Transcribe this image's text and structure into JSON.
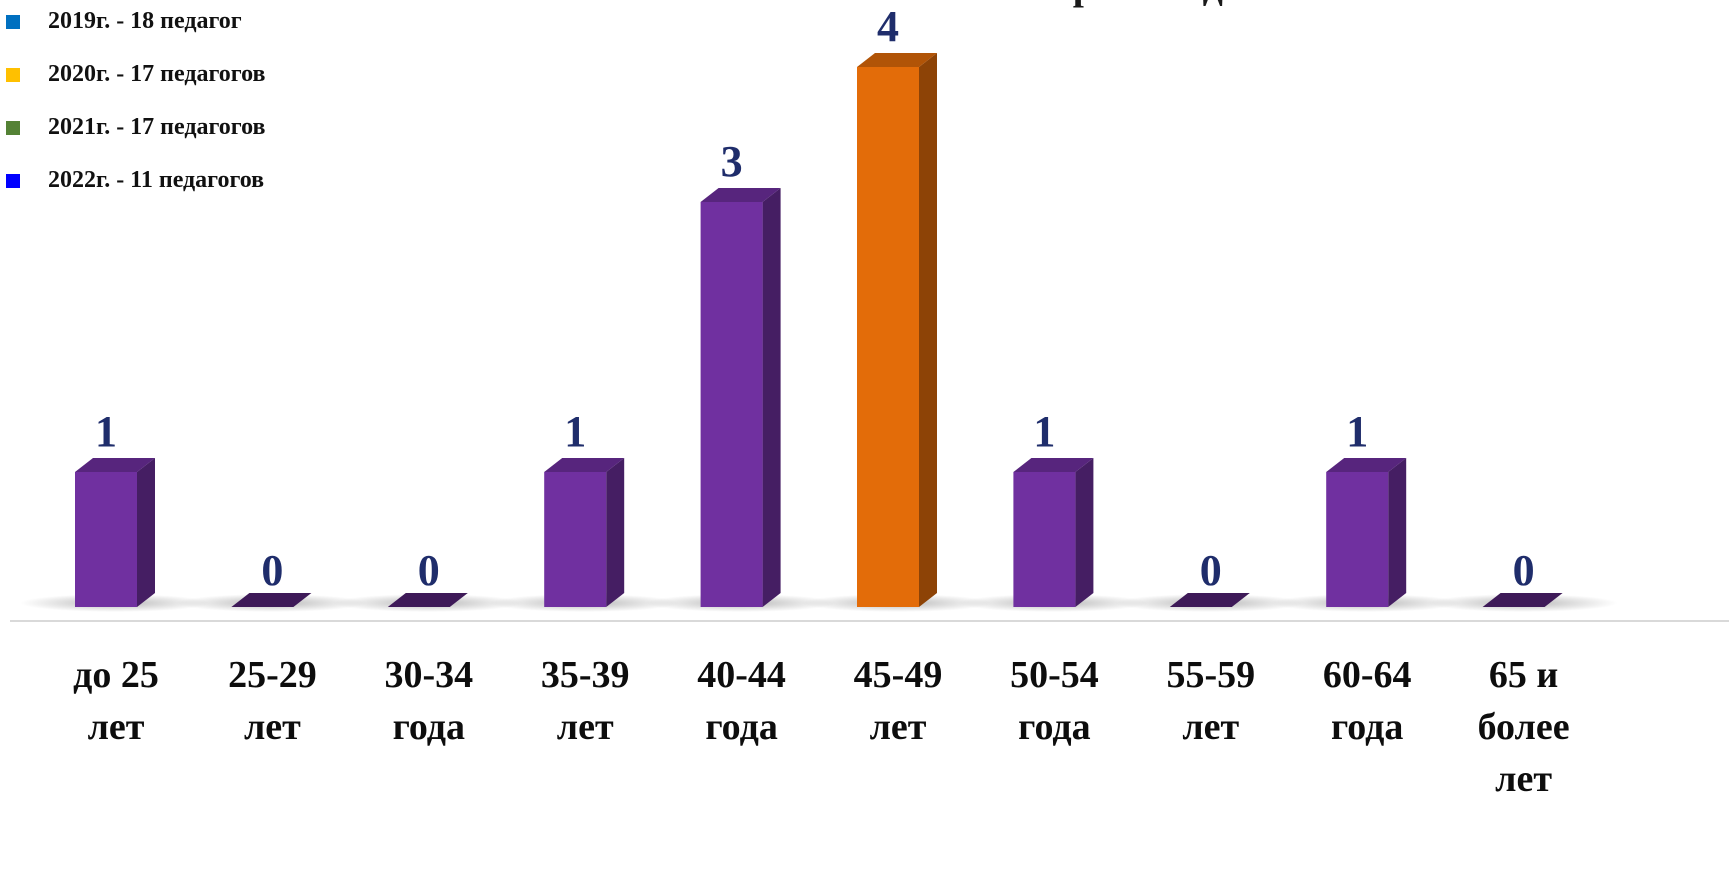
{
  "chart_data": {
    "type": "bar",
    "title": "Возраст педагогов",
    "categories": [
      [
        "до 25",
        "лет"
      ],
      [
        "25-29",
        "лет"
      ],
      [
        "30-34",
        "года"
      ],
      [
        "35-39",
        "лет"
      ],
      [
        "40-44",
        "года"
      ],
      [
        "45-49",
        "лет"
      ],
      [
        "50-54",
        "года"
      ],
      [
        "55-59",
        "лет"
      ],
      [
        "60-64",
        "года"
      ],
      [
        "65 и",
        "более",
        "лет"
      ]
    ],
    "values": [
      1,
      0,
      0,
      1,
      3,
      4,
      1,
      0,
      1,
      0
    ],
    "ylim": [
      0,
      4
    ],
    "bar_colors": [
      "#7030a0",
      "#7030a0",
      "#7030a0",
      "#7030a0",
      "#7030a0",
      "#e36c09",
      "#7030a0",
      "#7030a0",
      "#7030a0",
      "#7030a0"
    ],
    "value_label_color": "#1f2d6b",
    "grid": false,
    "legend": {
      "position": "top-left",
      "items": [
        {
          "label": "2019г. - 18 педагог",
          "color": "#0070c0"
        },
        {
          "label": "2020г. - 17 педагогов",
          "color": "#ffc000"
        },
        {
          "label": "2021г. - 17 педагогов",
          "color": "#548235"
        },
        {
          "label": "2022г. - 11 педагогов",
          "color": "#0000ff"
        }
      ]
    }
  }
}
